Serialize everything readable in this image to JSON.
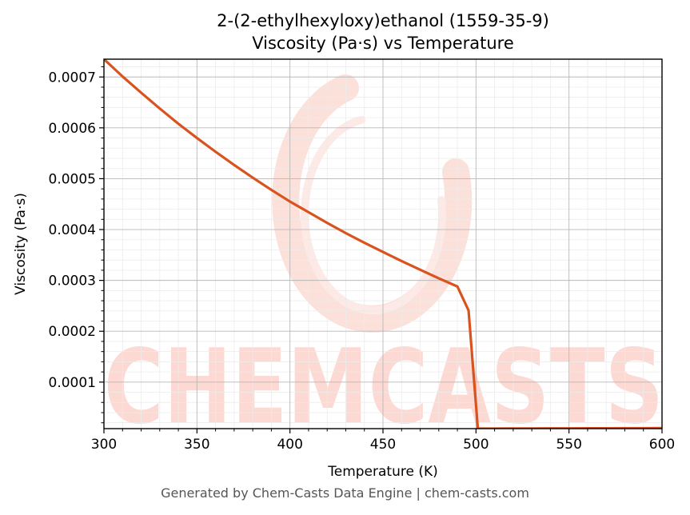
{
  "chart_data": {
    "type": "line",
    "title": "2-(2-ethylhexyloxy)ethanol (1559-35-9)",
    "subtitle": "Viscosity (Pa·s) vs Temperature",
    "xlabel": "Temperature (K)",
    "ylabel": "Viscosity (Pa·s)",
    "xlim": [
      300,
      600
    ],
    "ylim": [
      8.5e-06,
      0.000735
    ],
    "x_ticks": [
      300,
      350,
      400,
      450,
      500,
      550,
      600
    ],
    "x_tick_labels": [
      "300",
      "350",
      "400",
      "450",
      "500",
      "550",
      "600"
    ],
    "y_ticks": [
      0.0001,
      0.0002,
      0.0003,
      0.0004,
      0.0005,
      0.0006,
      0.0007
    ],
    "y_tick_labels": [
      "0.0001",
      "0.0002",
      "0.0003",
      "0.0004",
      "0.0005",
      "0.0006",
      "0.0007"
    ],
    "grid": true,
    "series": [
      {
        "color": "#d9531e",
        "x": [
          300,
          310,
          320,
          330,
          340,
          350,
          360,
          370,
          380,
          390,
          400,
          410,
          420,
          430,
          440,
          450,
          460,
          470,
          480,
          490,
          496,
          501,
          510,
          520,
          530,
          540,
          550,
          560,
          570,
          580,
          590,
          600
        ],
        "y": [
          0.000735,
          0.000701,
          0.000669,
          0.000638,
          0.000608,
          0.00058,
          0.000553,
          0.000527,
          0.000502,
          0.000478,
          0.000455,
          0.000434,
          0.000413,
          0.000393,
          0.000374,
          0.000356,
          0.000338,
          0.000321,
          0.000304,
          0.000288,
          0.000241,
          8.5e-06,
          8.6e-06,
          8.7e-06,
          8.8e-06,
          8.9e-06,
          9e-06,
          9.1e-06,
          9.2e-06,
          9.3e-06,
          9.4e-06,
          9.5e-06
        ]
      }
    ]
  },
  "watermark": {
    "text": "CHEMCASTS",
    "color": "#fcd9d2"
  },
  "footer": "Generated by Chem-Casts Data Engine | chem-casts.com"
}
